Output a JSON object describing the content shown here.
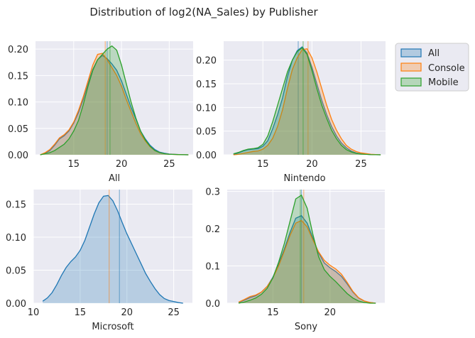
{
  "figure": {
    "title": "Distribution of log2(NA_Sales) by Publisher"
  },
  "legend": {
    "items": [
      {
        "label": "All",
        "color": "#1f77b4"
      },
      {
        "label": "Console",
        "color": "#ff7f0e"
      },
      {
        "label": "Mobile",
        "color": "#2ca02c"
      }
    ],
    "placement": "outside-right-top"
  },
  "chart_data": [
    {
      "type": "area",
      "kind": "kde",
      "xlabel": "All",
      "ylabel": "",
      "xlim": [
        11,
        27.5
      ],
      "ylim": [
        0,
        0.215
      ],
      "xticks": [
        15,
        20,
        25
      ],
      "yticks": [
        0.0,
        0.05,
        0.1,
        0.15,
        0.2
      ],
      "ytick_labels": [
        "0.00",
        "0.05",
        "0.10",
        "0.15",
        "0.20"
      ],
      "grid": true,
      "x": [
        11.5,
        12,
        12.5,
        13,
        13.5,
        14,
        14.5,
        15,
        15.5,
        16,
        16.5,
        17,
        17.5,
        18,
        18.5,
        19,
        19.5,
        20,
        20.5,
        21,
        21.5,
        22,
        22.5,
        23,
        23.5,
        24,
        24.5,
        25,
        26,
        27
      ],
      "series": [
        {
          "name": "All",
          "color": "#1f77b4",
          "mean_line": 18.5,
          "values": [
            0.0,
            0.003,
            0.008,
            0.018,
            0.03,
            0.036,
            0.045,
            0.06,
            0.08,
            0.105,
            0.135,
            0.162,
            0.18,
            0.188,
            0.182,
            0.172,
            0.16,
            0.14,
            0.115,
            0.09,
            0.068,
            0.045,
            0.03,
            0.018,
            0.01,
            0.005,
            0.003,
            0.0015,
            0.0005,
            0.0
          ]
        },
        {
          "name": "Console",
          "color": "#ff7f0e",
          "mean_line": 18.3,
          "values": [
            0.0,
            0.004,
            0.01,
            0.02,
            0.032,
            0.038,
            0.047,
            0.062,
            0.084,
            0.11,
            0.14,
            0.17,
            0.19,
            0.192,
            0.18,
            0.165,
            0.15,
            0.13,
            0.105,
            0.082,
            0.06,
            0.04,
            0.026,
            0.015,
            0.008,
            0.004,
            0.002,
            0.001,
            0.0004,
            0.0
          ]
        },
        {
          "name": "Mobile",
          "color": "#2ca02c",
          "mean_line": 18.8,
          "values": [
            0.0,
            0.002,
            0.004,
            0.008,
            0.014,
            0.02,
            0.03,
            0.045,
            0.065,
            0.095,
            0.13,
            0.16,
            0.18,
            0.19,
            0.2,
            0.206,
            0.198,
            0.17,
            0.135,
            0.1,
            0.07,
            0.045,
            0.028,
            0.016,
            0.008,
            0.004,
            0.002,
            0.001,
            0.0003,
            0.0
          ]
        }
      ]
    },
    {
      "type": "area",
      "kind": "kde",
      "xlabel": "Nintendo",
      "ylabel": "",
      "xlim": [
        11,
        27.5
      ],
      "ylim": [
        0,
        0.24
      ],
      "xticks": [
        15,
        20,
        25
      ],
      "yticks": [
        0.0,
        0.05,
        0.1,
        0.15,
        0.2
      ],
      "ytick_labels": [
        "0.00",
        "0.05",
        "0.10",
        "0.15",
        "0.20"
      ],
      "grid": true,
      "x": [
        12,
        12.5,
        13,
        13.5,
        14,
        14.5,
        15,
        15.5,
        16,
        16.5,
        17,
        17.5,
        18,
        18.5,
        19,
        19.5,
        20,
        20.5,
        21,
        21.5,
        22,
        22.5,
        23,
        23.5,
        24,
        24.5,
        25,
        26,
        27
      ],
      "series": [
        {
          "name": "All",
          "color": "#1f77b4",
          "mean_line": 18.6,
          "values": [
            0.001,
            0.004,
            0.008,
            0.011,
            0.012,
            0.013,
            0.018,
            0.03,
            0.055,
            0.085,
            0.12,
            0.165,
            0.2,
            0.22,
            0.228,
            0.215,
            0.185,
            0.15,
            0.115,
            0.085,
            0.06,
            0.04,
            0.025,
            0.015,
            0.008,
            0.004,
            0.002,
            0.0005,
            0.0
          ]
        },
        {
          "name": "Console",
          "color": "#ff7f0e",
          "mean_line": 19.6,
          "values": [
            0.0,
            0.001,
            0.003,
            0.005,
            0.007,
            0.008,
            0.012,
            0.02,
            0.035,
            0.06,
            0.095,
            0.14,
            0.18,
            0.205,
            0.222,
            0.224,
            0.205,
            0.175,
            0.14,
            0.105,
            0.075,
            0.052,
            0.034,
            0.02,
            0.012,
            0.007,
            0.004,
            0.001,
            0.0
          ]
        },
        {
          "name": "Mobile",
          "color": "#2ca02c",
          "mean_line": 19.1,
          "values": [
            0.002,
            0.005,
            0.009,
            0.012,
            0.013,
            0.015,
            0.022,
            0.04,
            0.07,
            0.105,
            0.14,
            0.175,
            0.2,
            0.218,
            0.226,
            0.212,
            0.178,
            0.14,
            0.105,
            0.077,
            0.052,
            0.034,
            0.02,
            0.011,
            0.006,
            0.003,
            0.0015,
            0.0004,
            0.0
          ]
        }
      ]
    },
    {
      "type": "area",
      "kind": "kde",
      "xlabel": "Microsoft",
      "ylabel": "",
      "xlim": [
        10,
        27
      ],
      "ylim": [
        0,
        0.172
      ],
      "xticks": [
        10,
        15,
        20,
        25
      ],
      "yticks": [
        0.0,
        0.05,
        0.1,
        0.15
      ],
      "ytick_labels": [
        "0.00",
        "0.05",
        "0.10",
        "0.15"
      ],
      "grid": true,
      "x": [
        11,
        11.5,
        12,
        12.5,
        13,
        13.5,
        14,
        14.5,
        15,
        15.5,
        16,
        16.5,
        17,
        17.5,
        18,
        18.5,
        19,
        19.5,
        20,
        20.5,
        21,
        21.5,
        22,
        22.5,
        23,
        23.5,
        24,
        24.5,
        25,
        25.5,
        26
      ],
      "series": [
        {
          "name": "All",
          "color": "#1f77b4",
          "values": [
            0.003,
            0.008,
            0.016,
            0.028,
            0.042,
            0.054,
            0.063,
            0.07,
            0.08,
            0.095,
            0.115,
            0.135,
            0.152,
            0.162,
            0.163,
            0.155,
            0.14,
            0.122,
            0.105,
            0.09,
            0.075,
            0.06,
            0.045,
            0.033,
            0.022,
            0.013,
            0.007,
            0.004,
            0.0025,
            0.001,
            0.0
          ]
        }
      ],
      "ref_lines": [
        {
          "x": 18.1,
          "color": "#ff7f0e"
        },
        {
          "x": 19.2,
          "color": "#1f77b4"
        }
      ]
    },
    {
      "type": "area",
      "kind": "kde",
      "xlabel": "Sony",
      "ylabel": "",
      "xlim": [
        11,
        24.8
      ],
      "ylim": [
        0,
        0.305
      ],
      "xticks": [
        15,
        20
      ],
      "yticks": [
        0.0,
        0.1,
        0.2,
        0.3
      ],
      "ytick_labels": [
        "0.0",
        "0.1",
        "0.2",
        "0.3"
      ],
      "grid": true,
      "x": [
        12,
        12.5,
        13,
        13.5,
        14,
        14.5,
        15,
        15.5,
        16,
        16.5,
        17,
        17.5,
        18,
        18.5,
        19,
        19.5,
        20,
        20.5,
        21,
        21.5,
        22,
        22.5,
        23,
        23.5,
        24
      ],
      "series": [
        {
          "name": "All",
          "color": "#1f77b4",
          "mean_line": 17.5,
          "values": [
            0.002,
            0.008,
            0.015,
            0.02,
            0.03,
            0.045,
            0.07,
            0.105,
            0.145,
            0.19,
            0.228,
            0.235,
            0.215,
            0.175,
            0.135,
            0.108,
            0.095,
            0.085,
            0.072,
            0.052,
            0.03,
            0.014,
            0.006,
            0.002,
            0.0
          ]
        },
        {
          "name": "Console",
          "color": "#ff7f0e",
          "mean_line": 17.7,
          "values": [
            0.003,
            0.01,
            0.018,
            0.022,
            0.03,
            0.045,
            0.068,
            0.1,
            0.14,
            0.182,
            0.215,
            0.222,
            0.205,
            0.17,
            0.138,
            0.115,
            0.102,
            0.092,
            0.078,
            0.056,
            0.032,
            0.015,
            0.006,
            0.002,
            0.0
          ]
        },
        {
          "name": "Mobile",
          "color": "#2ca02c",
          "mean_line": 17.4,
          "values": [
            0.0,
            0.003,
            0.008,
            0.014,
            0.024,
            0.04,
            0.068,
            0.11,
            0.16,
            0.22,
            0.28,
            0.29,
            0.255,
            0.185,
            0.125,
            0.09,
            0.072,
            0.058,
            0.042,
            0.026,
            0.014,
            0.006,
            0.002,
            0.0,
            0.0
          ]
        }
      ]
    }
  ]
}
